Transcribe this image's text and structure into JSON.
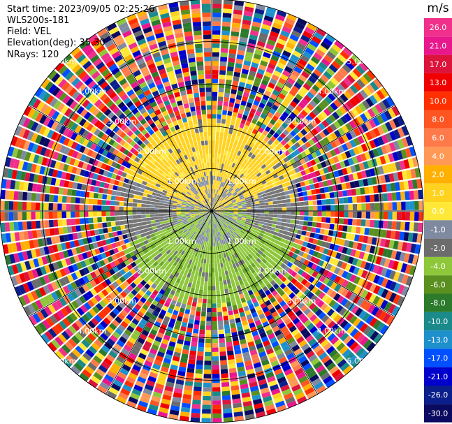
{
  "header": {
    "start_time": "Start time: 2023/09/05 02:25:26",
    "station": "WLS200s-181",
    "field": "Field: VEL",
    "elevation": "Elevation(deg): 35.30",
    "nrays": "NRays: 120"
  },
  "chart_data": {
    "type": "heatmap",
    "subtype": "ppi-polar",
    "field": "VEL",
    "n_rays": 120,
    "range_ring_labels": [
      "1.00km",
      "2.00km",
      "3.00km",
      "4.00km",
      "5.00km"
    ],
    "range_rings_km": [
      1,
      2,
      3,
      4,
      5
    ],
    "colorbar": {
      "unit": "m/s",
      "tick_labels": [
        "26.0",
        "21.0",
        "17.0",
        "13.0",
        "10.0",
        "8.0",
        "6.0",
        "4.0",
        "2.0",
        "1.0",
        "0.0",
        "-1.0",
        "-2.0",
        "-4.0",
        "-6.0",
        "-8.0",
        "-10.0",
        "-13.0",
        "-17.0",
        "-21.0",
        "-26.0",
        "-30.0"
      ],
      "colors": [
        "#f0308a",
        "#e8188c",
        "#dc143c",
        "#f00000",
        "#ff3000",
        "#ff5522",
        "#ff7a4a",
        "#ff9955",
        "#ffb000",
        "#ffd21f",
        "#ffe838",
        "#7f8aa0",
        "#6c6c6c",
        "#8ec73a",
        "#5a9020",
        "#2c7a2c",
        "#1a8a8a",
        "#1e90cc",
        "#0050ff",
        "#0000cc",
        "#0a1e8c",
        "#0a0a60"
      ]
    },
    "pattern": "Inner region (<~3 km): positive velocities (yellow, ~+1 to +2 m/s) toward north, negative velocities (green, ~-1 to -2 m/s) toward south, near-zero grey elsewhere; outer region noisy multi-color."
  }
}
